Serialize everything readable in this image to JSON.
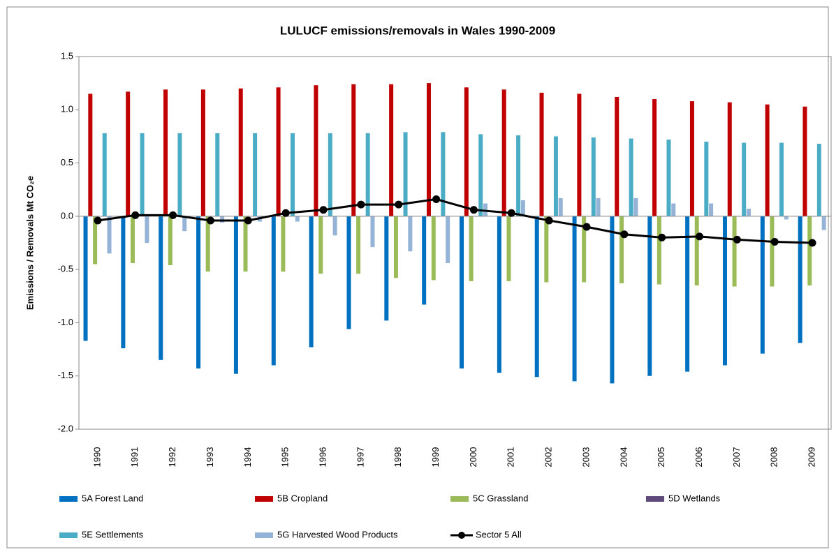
{
  "chart_data": {
    "type": "bar",
    "title": "LULUCF emissions/removals  in Wales 1990-2009",
    "y_label": "Emissions / Removals Mt CO₂e",
    "categories": [
      "1990",
      "1991",
      "1992",
      "1993",
      "1994",
      "1995",
      "1996",
      "1997",
      "1998",
      "1999",
      "2000",
      "2001",
      "2002",
      "2003",
      "2004",
      "2005",
      "2006",
      "2007",
      "2008",
      "2009"
    ],
    "series": [
      {
        "name": "5A Forest Land",
        "color": "#0070C0",
        "values": [
          -1.17,
          -1.24,
          -1.35,
          -1.43,
          -1.48,
          -1.4,
          -1.23,
          -1.06,
          -0.98,
          -0.83,
          -1.43,
          -1.47,
          -1.51,
          -1.55,
          -1.57,
          -1.5,
          -1.46,
          -1.4,
          -1.29,
          -1.19
        ]
      },
      {
        "name": "5B Cropland",
        "color": "#C00000",
        "values": [
          1.15,
          1.17,
          1.19,
          1.19,
          1.2,
          1.21,
          1.23,
          1.24,
          1.24,
          1.25,
          1.21,
          1.19,
          1.16,
          1.15,
          1.12,
          1.1,
          1.08,
          1.07,
          1.05,
          1.03
        ]
      },
      {
        "name": "5C Grassland",
        "color": "#9BBB59",
        "values": [
          -0.45,
          -0.44,
          -0.46,
          -0.52,
          -0.52,
          -0.52,
          -0.54,
          -0.54,
          -0.58,
          -0.6,
          -0.61,
          -0.61,
          -0.62,
          -0.62,
          -0.63,
          -0.64,
          -0.65,
          -0.66,
          -0.66,
          -0.65
        ]
      },
      {
        "name": "5D Wetlands",
        "color": "#604A7B",
        "values": [
          0,
          0,
          0,
          0,
          0,
          0,
          0,
          0,
          0,
          0,
          0,
          0,
          0,
          0,
          0,
          0,
          0,
          0,
          0,
          0
        ]
      },
      {
        "name": "5E Settlements",
        "color": "#4BACC6",
        "values": [
          0.78,
          0.78,
          0.78,
          0.78,
          0.78,
          0.78,
          0.78,
          0.78,
          0.79,
          0.79,
          0.77,
          0.76,
          0.75,
          0.74,
          0.73,
          0.72,
          0.7,
          0.69,
          0.69,
          0.68
        ]
      },
      {
        "name": "5G Harvested Wood  Products",
        "color": "#95B3D7",
        "values": [
          -0.35,
          -0.25,
          -0.14,
          -0.06,
          -0.05,
          -0.05,
          -0.18,
          -0.29,
          -0.33,
          -0.44,
          0.12,
          0.15,
          0.17,
          0.17,
          0.17,
          0.12,
          0.12,
          0.07,
          -0.03,
          -0.13
        ]
      },
      {
        "name": "Sector 5 All",
        "color": "#000000",
        "type": "line",
        "values": [
          -0.04,
          0.01,
          0.01,
          -0.04,
          -0.04,
          0.03,
          0.06,
          0.11,
          0.11,
          0.16,
          0.06,
          0.03,
          -0.04,
          -0.1,
          -0.17,
          -0.2,
          -0.19,
          -0.22,
          -0.24,
          -0.25
        ]
      }
    ],
    "ylim": [
      -2.0,
      1.5
    ],
    "yticks": [
      1.5,
      {
        "value": 1.0,
        "label": "1.0"
      },
      0.5,
      {
        "value": 0.0,
        "label": "0.0"
      },
      -0.5,
      {
        "value": -1.0,
        "label": "-1.0"
      },
      -1.5,
      {
        "value": -2.0,
        "label": "-2.0"
      }
    ],
    "grid": false,
    "legend": "bottom"
  }
}
